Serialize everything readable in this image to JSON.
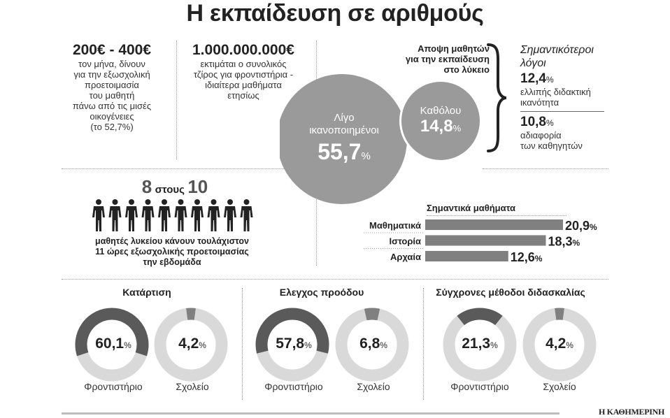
{
  "title": "Η εκπαίδευση σε αριθμούς",
  "stat1": {
    "value": "200€ - 400€",
    "text": [
      "τον μήνα, δίνουν",
      "για την εξωσχολική",
      "προετοιμασία",
      "του μαθητή",
      "πάνω από τις μισές",
      "οικογένειες",
      "(το 52,7%)"
    ]
  },
  "stat2": {
    "value": "1.000.000.000€",
    "text": [
      "εκτιμάται ο συνολικός",
      "τζίρος για φροντιστήρια -",
      "ιδιαίτερα μαθήματα",
      "ετησίως"
    ]
  },
  "bubble_chart": {
    "title_lines": [
      "Αποψη μαθητών",
      "για την εκπαίδευση",
      "στο λύκειο"
    ],
    "big": {
      "label_lines": [
        "Λίγο",
        "ικανοποιημένοι"
      ],
      "value": "55,7",
      "unit": "%"
    },
    "small": {
      "label": "Καθόλου",
      "value": "14,8",
      "unit": "%"
    }
  },
  "reasons": {
    "title_lines": [
      "Σημαντικότεροι",
      "λόγοι"
    ],
    "items": [
      {
        "value": "12,4",
        "unit": "%",
        "text_lines": [
          "ελλιπής διδακτική",
          "ικανότητα"
        ]
      },
      {
        "value": "10,8",
        "unit": "%",
        "text_lines": [
          "αδιαφορία",
          "των καθηγητών"
        ]
      }
    ]
  },
  "people": {
    "num1": "8",
    "word": "στους",
    "num2": "10",
    "count": 10,
    "text_lines": [
      "μαθητές λυκείου κάνουν τουλάχιστον",
      "11 ώρες εξωσχολικής προετοιμασίας",
      "την εβδομάδα"
    ]
  },
  "chart_data": [
    {
      "type": "bar",
      "title": "Σημαντικά μαθήματα",
      "categories": [
        "Μαθηματικά",
        "Ιστορία",
        "Αρχαία"
      ],
      "values": [
        20.9,
        18.3,
        12.6
      ],
      "labels": [
        "20,9",
        "18,3",
        "12,6"
      ],
      "unit": "%",
      "orientation": "horizontal",
      "color": "#808080"
    },
    {
      "type": "pie",
      "title": "Κατάρτιση",
      "donuts": [
        {
          "label": "Φροντιστήριο",
          "value": 60.1,
          "text": "60,1",
          "unit": "%"
        },
        {
          "label": "Σχολείο",
          "value": 4.2,
          "text": "4,2",
          "unit": "%"
        }
      ]
    },
    {
      "type": "pie",
      "title": "Ελεγχος προόδου",
      "donuts": [
        {
          "label": "Φροντιστήριο",
          "value": 57.8,
          "text": "57,8",
          "unit": "%"
        },
        {
          "label": "Σχολείο",
          "value": 6.8,
          "text": "6,8",
          "unit": "%"
        }
      ]
    },
    {
      "type": "pie",
      "title": "Σύγχρονες μέθοδοι διδασκαλίας",
      "donuts": [
        {
          "label": "Φροντιστήριο",
          "value": 21.3,
          "text": "21,3",
          "unit": "%"
        },
        {
          "label": "Σχολείο",
          "value": 4.2,
          "text": "4,2",
          "unit": "%"
        }
      ]
    }
  ],
  "colors": {
    "dark": "#5a5a5a",
    "mid": "#808080",
    "light": "#d9d9d9",
    "bubble": "#9a9a9a"
  },
  "footer": {
    "source": "Η ΚΑΘΗΜΕΡΙΝΗ"
  }
}
